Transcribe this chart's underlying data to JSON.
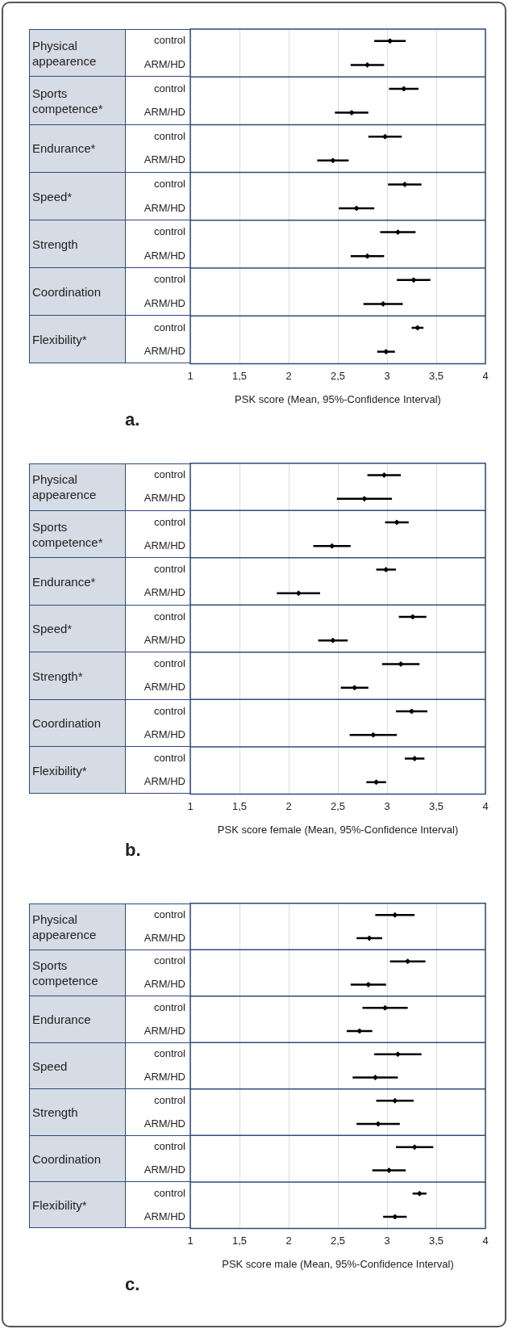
{
  "chart_data": [
    {
      "type": "scatter",
      "title": "a.",
      "xlabel": "PSK score (Mean, 95%-Confidence Interval)",
      "orientation": "horizontal",
      "color": "#000000",
      "marker": "diamond",
      "grid": "x",
      "categories": [
        "control",
        "ARM/HD",
        "control",
        "ARM/HD",
        "control",
        "ARM/HD",
        "control",
        "ARM/HD",
        "control",
        "ARM/HD",
        "control",
        "ARM/HD",
        "control",
        "ARM/HD"
      ],
      "values": [
        3.03,
        2.8,
        3.17,
        2.64,
        2.98,
        2.45,
        3.18,
        2.69,
        3.11,
        2.8,
        3.27,
        2.96,
        3.31,
        2.99
      ],
      "errors": [
        0.16,
        0.17,
        0.15,
        0.17,
        0.17,
        0.16,
        0.17,
        0.18,
        0.18,
        0.17,
        0.17,
        0.2,
        0.06,
        0.09
      ],
      "xlim": [
        1,
        4
      ],
      "xticks": [
        1,
        {
          "value": 1.5,
          "label": "1,5"
        },
        2,
        {
          "value": 2.5,
          "label": "2,5"
        },
        3,
        {
          "value": 3.5,
          "label": "3,5"
        },
        4
      ],
      "annotations": [
        "Physical appearence",
        "Sports competence*",
        "Endurance*",
        "Speed*",
        "Strength",
        "Coordination",
        "Flexibility*"
      ]
    },
    {
      "type": "scatter",
      "title": "b.",
      "xlabel": "PSK score female (Mean, 95%-Confidence Interval)",
      "orientation": "horizontal",
      "color": "#000000",
      "marker": "diamond",
      "grid": "x",
      "categories": [
        "control",
        "ARM/HD",
        "control",
        "ARM/HD",
        "control",
        "ARM/HD",
        "control",
        "ARM/HD",
        "control",
        "ARM/HD",
        "control",
        "ARM/HD",
        "control",
        "ARM/HD"
      ],
      "values": [
        2.97,
        2.77,
        3.1,
        2.44,
        2.99,
        2.1,
        3.26,
        2.45,
        3.14,
        2.67,
        3.25,
        2.86,
        3.28,
        2.89
      ],
      "errors": [
        0.17,
        0.28,
        0.12,
        0.19,
        0.1,
        0.22,
        0.14,
        0.15,
        0.19,
        0.14,
        0.16,
        0.24,
        0.1,
        0.1
      ],
      "xlim": [
        1,
        4
      ],
      "xticks": [
        1,
        {
          "value": 1.5,
          "label": "1,5"
        },
        2,
        {
          "value": 2.5,
          "label": "2,5"
        },
        3,
        {
          "value": 3.5,
          "label": "3,5"
        },
        4
      ],
      "annotations": [
        "Physical appearence",
        "Sports competence*",
        "Endurance*",
        "Speed*",
        "Strength*",
        "Coordination",
        "Flexibility*"
      ]
    },
    {
      "type": "scatter",
      "title": "c.",
      "xlabel": "PSK score male (Mean, 95%-Confidence Interval)",
      "orientation": "horizontal",
      "color": "#000000",
      "marker": "diamond",
      "grid": "x",
      "categories": [
        "control",
        "ARM/HD",
        "control",
        "ARM/HD",
        "control",
        "ARM/HD",
        "control",
        "ARM/HD",
        "control",
        "ARM/HD",
        "control",
        "ARM/HD",
        "control",
        "ARM/HD"
      ],
      "values": [
        3.08,
        2.82,
        3.21,
        2.81,
        2.98,
        2.72,
        3.11,
        2.88,
        3.08,
        2.91,
        3.28,
        3.02,
        3.33,
        3.08
      ],
      "errors": [
        0.2,
        0.13,
        0.18,
        0.18,
        0.23,
        0.13,
        0.24,
        0.23,
        0.19,
        0.22,
        0.19,
        0.17,
        0.07,
        0.12
      ],
      "xlim": [
        1,
        4
      ],
      "xticks": [
        1,
        {
          "value": 1.5,
          "label": "1,5"
        },
        2,
        {
          "value": 2.5,
          "label": "2,5"
        },
        3,
        {
          "value": 3.5,
          "label": "3,5"
        },
        4
      ],
      "annotations": [
        "Physical appearence",
        "Sports competence",
        "Endurance",
        "Speed",
        "Strength",
        "Coordination",
        "Flexibility*"
      ]
    }
  ]
}
